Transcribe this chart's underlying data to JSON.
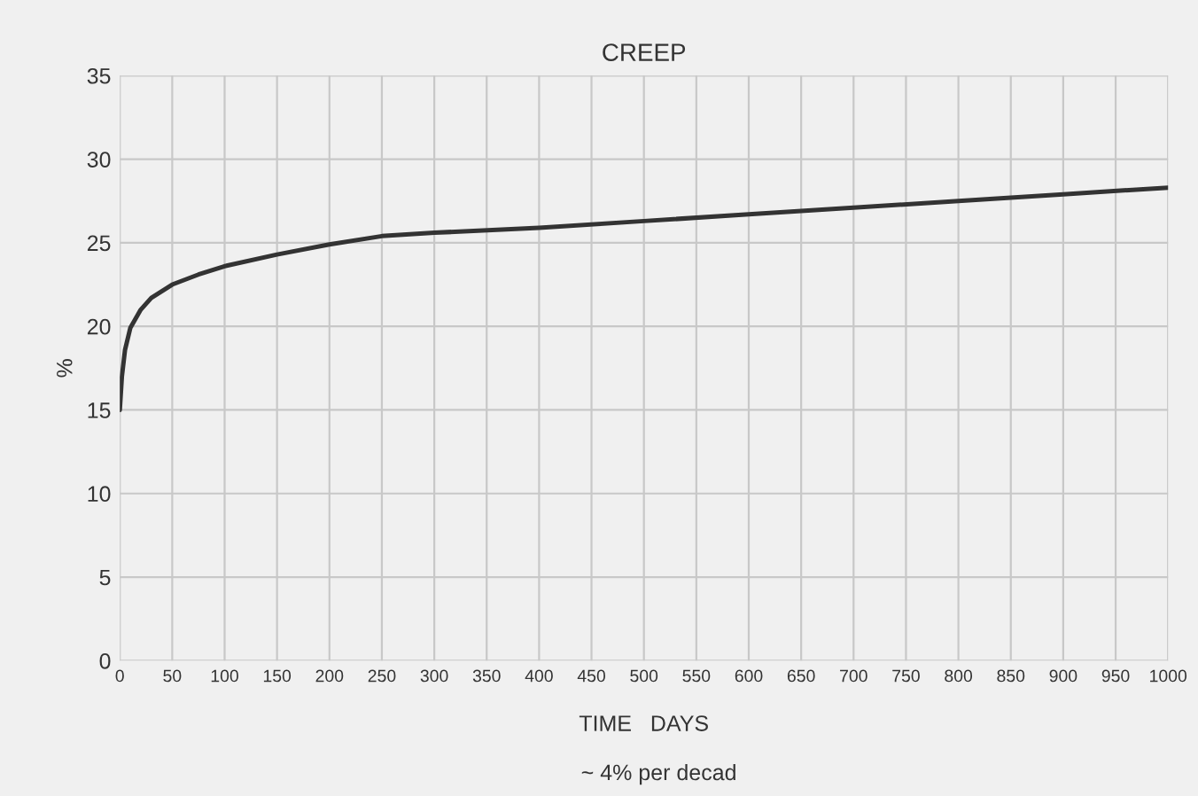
{
  "chart_data": {
    "type": "line",
    "title": "CREEP",
    "xlabel": "TIME   DAYS",
    "ylabel": "%",
    "annotations": [
      "~ 4% per decad"
    ],
    "x": [
      0,
      2,
      5,
      10,
      20,
      30,
      50,
      75,
      100,
      150,
      200,
      250,
      300,
      400,
      500,
      600,
      700,
      800,
      900,
      1000
    ],
    "series": [
      {
        "color": "#333333",
        "values": [
          15,
          17,
          18.6,
          19.9,
          21.0,
          21.7,
          22.5,
          23.1,
          23.6,
          24.3,
          24.9,
          25.4,
          25.6,
          25.9,
          26.3,
          26.7,
          27.1,
          27.5,
          27.9,
          28.3
        ]
      }
    ],
    "xlim": [
      0,
      1000
    ],
    "xticks": [
      0,
      50,
      100,
      150,
      200,
      250,
      300,
      350,
      400,
      450,
      500,
      550,
      600,
      650,
      700,
      750,
      800,
      850,
      900,
      950,
      1000
    ],
    "ylim": [
      0,
      35
    ],
    "yticks": [
      0,
      5,
      10,
      15,
      20,
      25,
      30,
      35
    ],
    "grid": true,
    "marker": "none",
    "line_style": "solid"
  }
}
